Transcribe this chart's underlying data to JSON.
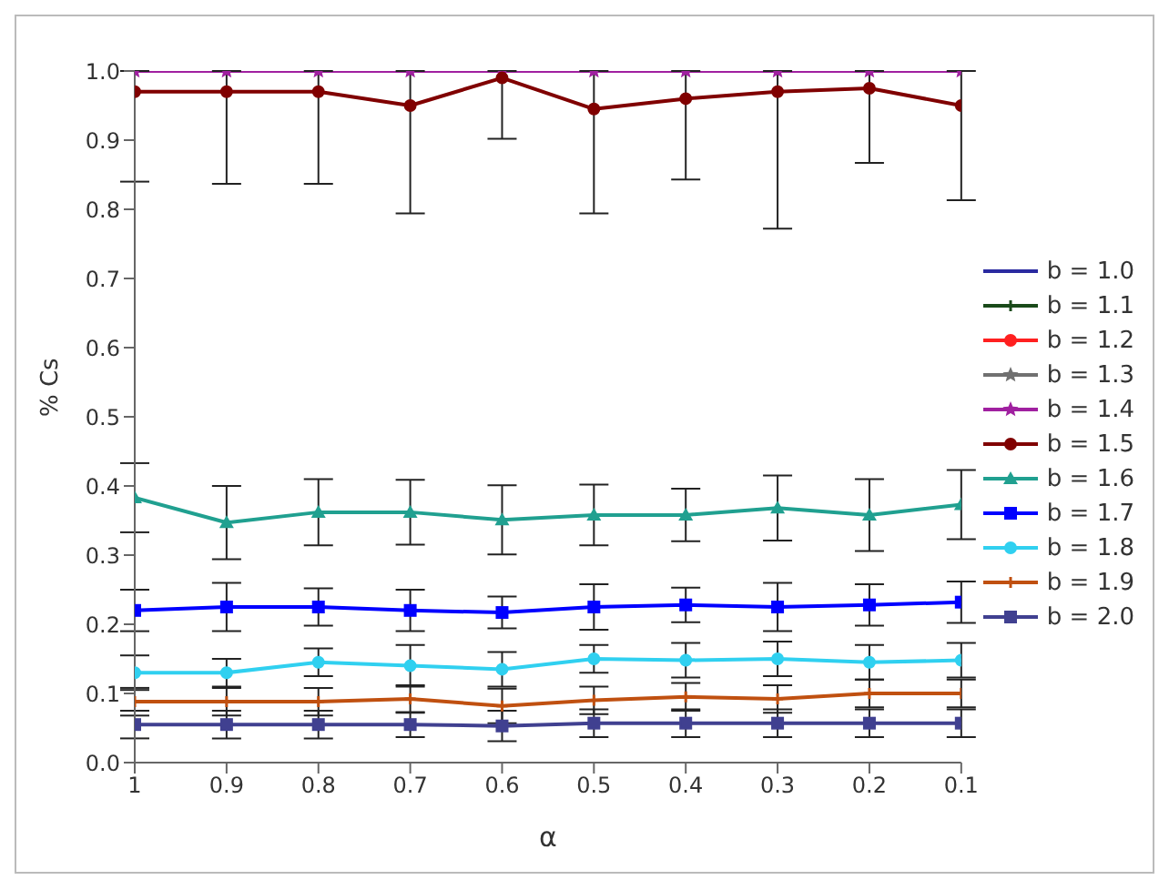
{
  "chart_data": {
    "type": "line",
    "xlabel": "α",
    "ylabel": "% Cs",
    "x": [
      1,
      0.9,
      0.8,
      0.7,
      0.6,
      0.5,
      0.4,
      0.3,
      0.2,
      0.1
    ],
    "xlim": [
      1,
      0.1
    ],
    "xticks": [
      1,
      0.9,
      0.8,
      0.7,
      0.6,
      0.5,
      0.4,
      0.3,
      0.2,
      0.1
    ],
    "ylim": [
      0,
      1
    ],
    "yticks": [
      {
        "value": 0,
        "label": "0.0"
      },
      0.1,
      0.2,
      0.3,
      0.4,
      0.5,
      0.6,
      0.7,
      0.8,
      0.9,
      {
        "value": 1,
        "label": "1.0"
      }
    ],
    "legend": "right",
    "line_style": "solid",
    "series": [
      {
        "name": "b = 1.0",
        "color": "#2a2aa0",
        "marker": "none",
        "values": [
          null,
          null,
          null,
          null,
          null,
          null,
          null,
          null,
          null,
          null
        ]
      },
      {
        "name": "b = 1.1",
        "color": "#1a4a1a",
        "marker": "cross",
        "values": [
          null,
          null,
          null,
          null,
          null,
          null,
          null,
          null,
          null,
          null
        ]
      },
      {
        "name": "b = 1.2",
        "color": "#ff2020",
        "marker": "circle",
        "values": [
          null,
          null,
          null,
          null,
          null,
          null,
          null,
          null,
          null,
          null
        ]
      },
      {
        "name": "b = 1.3",
        "color": "#707070",
        "marker": "star",
        "values": [
          null,
          null,
          null,
          null,
          null,
          null,
          null,
          null,
          null,
          null
        ]
      },
      {
        "name": "b = 1.4",
        "color": "#a020a0",
        "marker": "star",
        "values": [
          1,
          1,
          1,
          1,
          1,
          1,
          1,
          1,
          1,
          1
        ]
      },
      {
        "name": "b = 1.5",
        "color": "#800000",
        "marker": "circle",
        "values": [
          0.97,
          0.97,
          0.97,
          0.95,
          0.99,
          0.945,
          0.96,
          0.97,
          0.975,
          0.95
        ],
        "errors": [
          [
            0.84,
            1
          ],
          [
            0.837,
            1
          ],
          [
            0.837,
            1
          ],
          [
            0.794,
            1
          ],
          [
            0.902,
            1
          ],
          [
            0.794,
            1
          ],
          [
            0.843,
            1
          ],
          [
            0.772,
            1
          ],
          [
            0.867,
            1
          ],
          [
            0.813,
            1
          ]
        ]
      },
      {
        "name": "b = 1.6",
        "color": "#20a090",
        "marker": "triangle",
        "values": [
          0.383,
          0.347,
          0.362,
          0.362,
          0.351,
          0.358,
          0.358,
          0.368,
          0.358,
          0.373
        ],
        "errors": [
          0.05,
          0.053,
          0.048,
          0.047,
          0.05,
          0.044,
          0.038,
          0.047,
          0.052,
          0.05
        ]
      },
      {
        "name": "b = 1.7",
        "color": "#0000ff",
        "marker": "square",
        "values": [
          0.22,
          0.225,
          0.225,
          0.22,
          0.217,
          0.225,
          0.228,
          0.225,
          0.228,
          0.232
        ],
        "errors": [
          0.03,
          0.035,
          0.027,
          0.03,
          0.023,
          0.033,
          0.025,
          0.035,
          0.03,
          0.03
        ]
      },
      {
        "name": "b = 1.8",
        "color": "#30d0f0",
        "marker": "circle",
        "values": [
          0.13,
          0.13,
          0.145,
          0.14,
          0.135,
          0.15,
          0.148,
          0.15,
          0.145,
          0.148
        ],
        "errors": [
          0.025,
          0.02,
          0.02,
          0.03,
          0.025,
          0.02,
          0.025,
          0.025,
          0.025,
          0.025
        ]
      },
      {
        "name": "b = 1.9",
        "color": "#c05010",
        "marker": "cross",
        "values": [
          0.088,
          0.088,
          0.088,
          0.092,
          0.082,
          0.09,
          0.095,
          0.092,
          0.1,
          0.1
        ],
        "errors": [
          0.02,
          0.02,
          0.02,
          0.02,
          0.025,
          0.02,
          0.02,
          0.02,
          0.02,
          0.02
        ]
      },
      {
        "name": "b = 2.0",
        "color": "#404090",
        "marker": "square",
        "values": [
          0.055,
          0.055,
          0.055,
          0.055,
          0.053,
          0.057,
          0.057,
          0.057,
          0.057,
          0.057
        ],
        "errors": [
          0.02,
          0.02,
          0.02,
          0.018,
          0.022,
          0.02,
          0.02,
          0.02,
          0.02,
          0.02
        ]
      }
    ]
  }
}
